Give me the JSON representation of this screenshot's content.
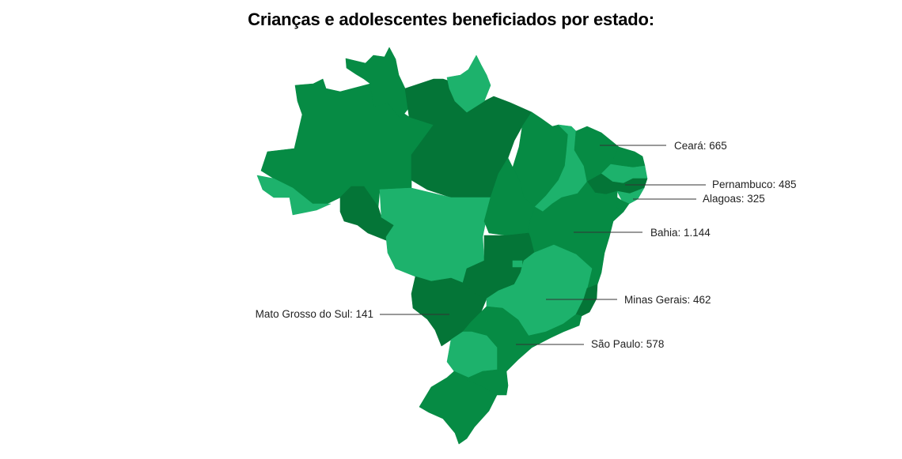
{
  "title": "Crianças e adolescentes beneficiados por estado:",
  "colors": {
    "light": "#1db26c",
    "mid": "#068b44",
    "dark": "#047537",
    "leader": "#333333",
    "text": "#222222"
  },
  "labels": [
    {
      "state": "Ceará",
      "value": "665",
      "text": "Ceará: 665"
    },
    {
      "state": "Pernambuco",
      "value": "485",
      "text": "Pernambuco: 485"
    },
    {
      "state": "Alagoas",
      "value": "325",
      "text": "Alagoas: 325"
    },
    {
      "state": "Bahia",
      "value": "1.144",
      "text": "Bahia: 1.144"
    },
    {
      "state": "Minas Gerais",
      "value": "462",
      "text": "Minas Gerais: 462"
    },
    {
      "state": "Mato Grosso do Sul",
      "value": "141",
      "text": "Mato Grosso do Sul: 141"
    },
    {
      "state": "São Paulo",
      "value": "578",
      "text": "São Paulo: 578"
    }
  ]
}
